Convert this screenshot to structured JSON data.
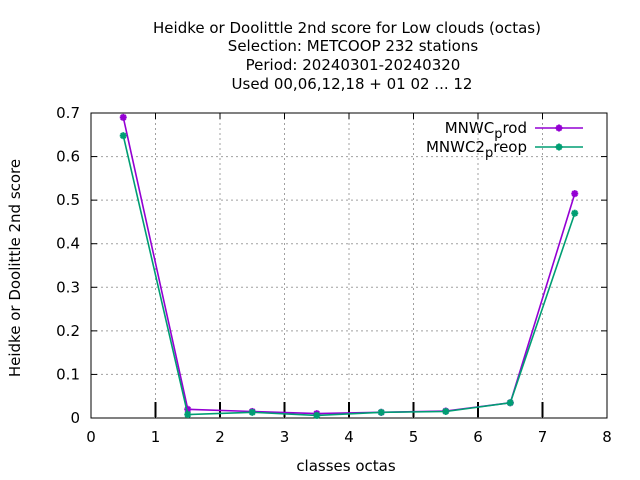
{
  "chart_data": {
    "type": "line",
    "title_lines": [
      "Heidke or Doolittle 2nd score  for Low clouds (octas)",
      "Selection: METCOOP    232 stations",
      "Period: 20240301-20240320",
      "Used  00,06,12,18 + 01 02 ... 12"
    ],
    "xlabel": "classes octas",
    "ylabel": "Heidke or Doolittle 2nd score",
    "xlim": [
      0,
      8
    ],
    "ylim": [
      0,
      0.7
    ],
    "xticks": [
      "0",
      "1",
      "2",
      "3",
      "4",
      "5",
      "6",
      "7",
      "8"
    ],
    "yticks": [
      "0",
      "0.1",
      "0.2",
      "0.3",
      "0.4",
      "0.5",
      "0.6",
      "0.7"
    ],
    "grid": true,
    "legend_position": "top-right",
    "series": [
      {
        "name_main": "MNWC",
        "name_sub": "p",
        "name_rest": "rod",
        "color": "#9400d3",
        "x": [
          0.5,
          1.5,
          2.5,
          3.5,
          4.5,
          5.5,
          6.5,
          7.5
        ],
        "y": [
          0.69,
          0.02,
          0.015,
          0.01,
          0.013,
          0.016,
          0.035,
          0.515
        ]
      },
      {
        "name_main": "MNWC2",
        "name_sub": "p",
        "name_rest": "reop",
        "color": "#009e73",
        "x": [
          0.5,
          1.5,
          2.5,
          3.5,
          4.5,
          5.5,
          6.5,
          7.5
        ],
        "y": [
          0.648,
          0.008,
          0.013,
          0.006,
          0.013,
          0.015,
          0.035,
          0.47
        ]
      }
    ]
  }
}
